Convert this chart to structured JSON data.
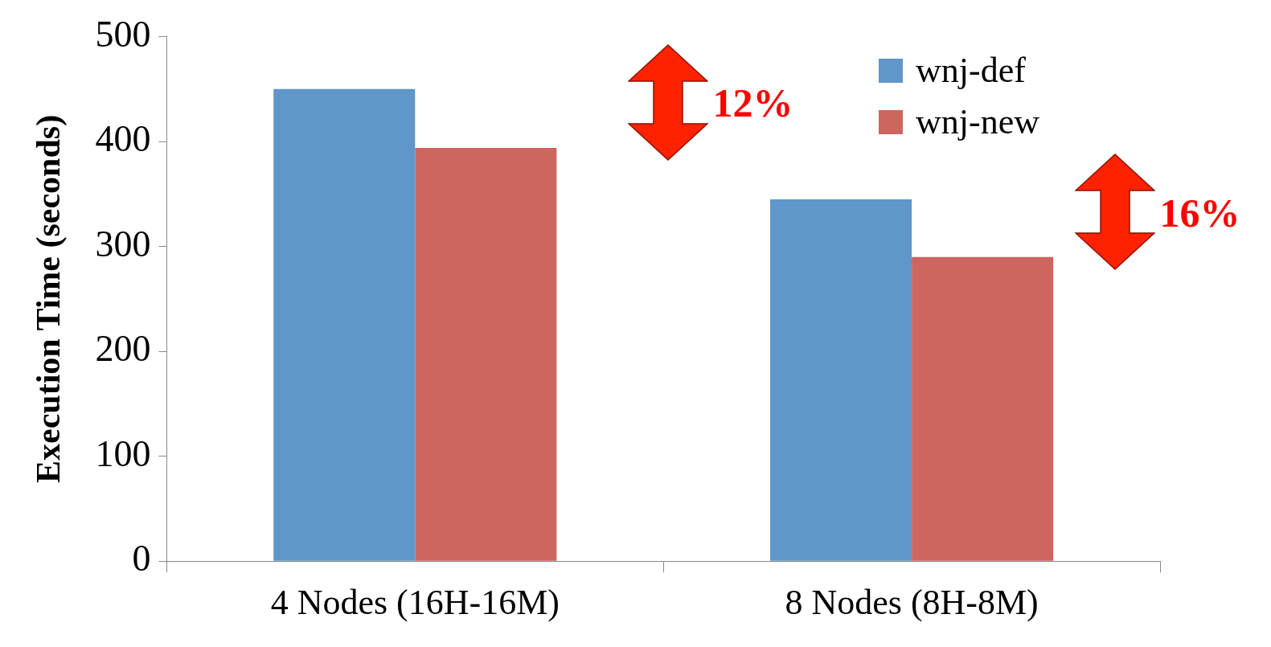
{
  "chart_data": {
    "type": "bar",
    "ylabel": "Execution Time (seconds)",
    "categories": [
      "4 Nodes (16H-16M)",
      "8 Nodes (8H-8M)"
    ],
    "series": [
      {
        "name": "wnj-def",
        "color": "#6096c9",
        "values": [
          450,
          345
        ]
      },
      {
        "name": "wnj-new",
        "color": "#cc665f",
        "values": [
          394,
          290
        ]
      }
    ],
    "ylim": [
      0,
      500
    ],
    "yticks": [
      0,
      100,
      200,
      300,
      400,
      500
    ],
    "grid": false,
    "legend": "top right",
    "annotations": [
      "12%",
      "16%"
    ]
  }
}
